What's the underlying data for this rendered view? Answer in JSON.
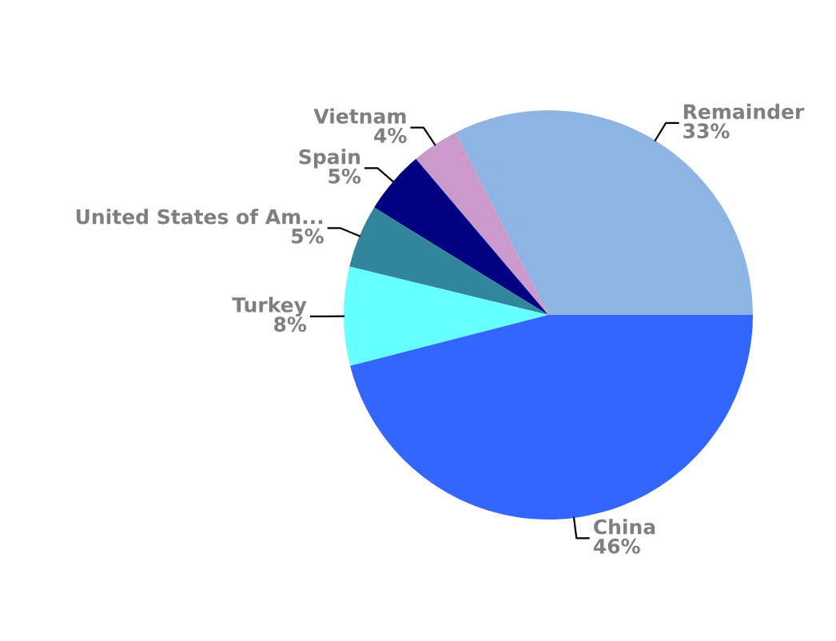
{
  "chart_data": {
    "type": "pie",
    "categories": [
      "Remainder",
      "Vietnam",
      "Spain",
      "United States of Am...",
      "Turkey",
      "China"
    ],
    "values": [
      32.5,
      3.7,
      5,
      5,
      7.8,
      46
    ],
    "value_labels": [
      "33%",
      "4%",
      "5%",
      "5%",
      "8%",
      "46%"
    ],
    "colors": [
      "#8eb4e3",
      "#cc99cc",
      "#000080",
      "#31859c",
      "#66ffff",
      "#3366ff"
    ],
    "legend": false
  }
}
